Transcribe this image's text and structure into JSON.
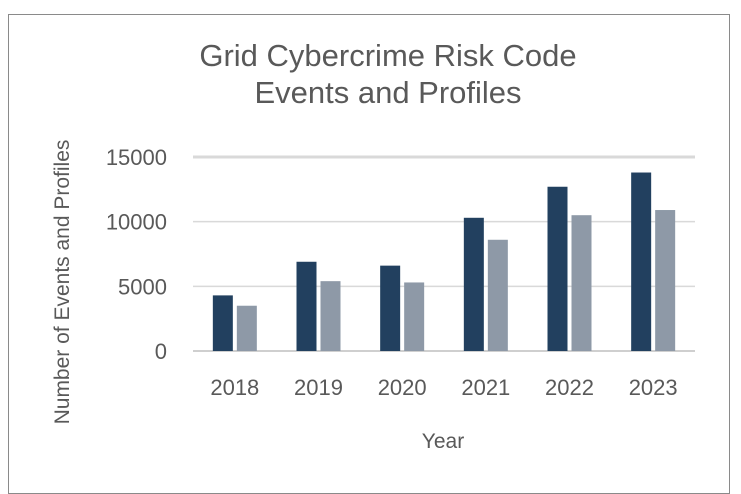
{
  "chart_data": {
    "type": "bar",
    "title_lines": [
      "Grid Cybercrime Risk Code",
      "Events and Profiles"
    ],
    "xlabel": "Year",
    "ylabel": "Number of Events and Profiles",
    "categories": [
      "2018",
      "2019",
      "2020",
      "2021",
      "2022",
      "2023"
    ],
    "series": [
      {
        "values": [
          4300,
          6900,
          6600,
          10300,
          12700,
          13800
        ],
        "color": "#22405f"
      },
      {
        "values": [
          3500,
          5400,
          5300,
          8600,
          10500,
          10900
        ],
        "color": "#8e99a7"
      }
    ],
    "ylim": [
      0,
      15000
    ],
    "yticks": [
      0,
      5000,
      10000,
      15000
    ],
    "grid": true,
    "legend": "none"
  }
}
